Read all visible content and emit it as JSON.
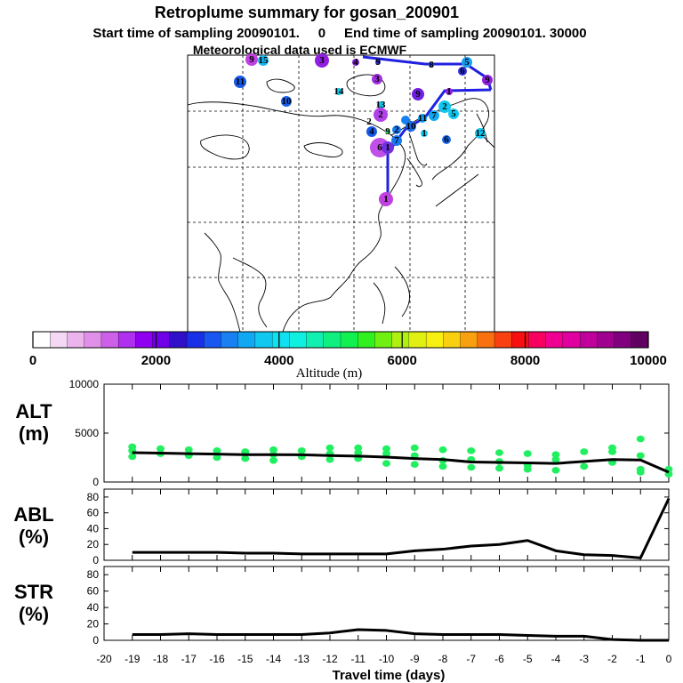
{
  "header": {
    "title": "Retroplume summary for gosan_200901",
    "sampling_line": "Start time of sampling 20090101.     0     End time of sampling 20090101. 30000",
    "met_line": "Meteorological data used is ECMWF"
  },
  "colorbar": {
    "ticks": [
      "0",
      "2000",
      "4000",
      "6000",
      "8000",
      "10000"
    ],
    "label": "Altitude (m)",
    "colors": [
      "#ffffff",
      "#f4d8f4",
      "#ecb4ec",
      "#e090e8",
      "#cc60e8",
      "#b030f0",
      "#9000f0",
      "#7000e8",
      "#3010c8",
      "#1830e8",
      "#1858f0",
      "#1880f0",
      "#10a8f0",
      "#10c8f0",
      "#10e0f0",
      "#10f0e0",
      "#10f0b0",
      "#10f080",
      "#10f050",
      "#30f020",
      "#70f010",
      "#b0f010",
      "#e0f010",
      "#f8f010",
      "#f8d010",
      "#f8a010",
      "#f87010",
      "#f84010",
      "#f81010",
      "#f80060",
      "#f00090",
      "#e000a0",
      "#c0009a",
      "#a00090",
      "#800080",
      "#600060"
    ]
  },
  "map": {
    "annotations": [
      "9",
      "15",
      "3",
      "4",
      "9",
      "8",
      "5",
      "6",
      "9",
      "11",
      "10",
      "14",
      "3",
      "9",
      "1",
      "13",
      "2",
      "2",
      "2",
      "5",
      "7",
      "11",
      "10",
      "2",
      "4",
      "9",
      "1",
      "6",
      "12",
      "7",
      "6",
      "1",
      "1",
      "0"
    ],
    "trajectory_color": "#2020e0"
  },
  "chart_data": [
    {
      "type": "line",
      "panel_label": "ALT\n(m)",
      "label_line1": "ALT",
      "label_line2": "(m)",
      "ylim": [
        0,
        10000
      ],
      "yticks": [
        "0",
        "5000",
        "10000"
      ],
      "x": [
        -19,
        -18,
        -17,
        -16,
        -15,
        -14,
        -13,
        -12,
        -11,
        -10,
        -9,
        -8,
        -7,
        -6,
        -5,
        -4,
        -3,
        -2,
        -1,
        0
      ],
      "series": [
        {
          "name": "mean altitude",
          "values": [
            3000,
            2950,
            2900,
            2850,
            2800,
            2800,
            2780,
            2700,
            2650,
            2550,
            2400,
            2300,
            2050,
            2000,
            1950,
            1900,
            2100,
            2300,
            2250,
            1000
          ]
        }
      ],
      "scatter": [
        {
          "x": -19,
          "y": [
            3600,
            3200,
            2600
          ]
        },
        {
          "x": -18,
          "y": [
            3400,
            2900
          ]
        },
        {
          "x": -17,
          "y": [
            3300,
            2700
          ]
        },
        {
          "x": -16,
          "y": [
            3200,
            2500
          ]
        },
        {
          "x": -15,
          "y": [
            3100,
            2400
          ]
        },
        {
          "x": -14,
          "y": [
            3300,
            2800,
            2200
          ]
        },
        {
          "x": -13,
          "y": [
            3200,
            2600
          ]
        },
        {
          "x": -12,
          "y": [
            3500,
            2900,
            2300
          ]
        },
        {
          "x": -11,
          "y": [
            3500,
            3000,
            2400
          ]
        },
        {
          "x": -10,
          "y": [
            3400,
            2900,
            1900
          ]
        },
        {
          "x": -9,
          "y": [
            3500,
            2700,
            1800
          ]
        },
        {
          "x": -8,
          "y": [
            3300,
            2200,
            1600
          ]
        },
        {
          "x": -7,
          "y": [
            3200,
            2300,
            1500
          ]
        },
        {
          "x": -6,
          "y": [
            3000,
            2100,
            1400
          ]
        },
        {
          "x": -5,
          "y": [
            2900,
            1700,
            1300
          ]
        },
        {
          "x": -4,
          "y": [
            2800,
            2300,
            1200
          ]
        },
        {
          "x": -3,
          "y": [
            3100,
            1600
          ]
        },
        {
          "x": -2,
          "y": [
            3500,
            3100,
            2000
          ]
        },
        {
          "x": -1,
          "y": [
            4400,
            2700,
            1300,
            1000
          ]
        },
        {
          "x": 0,
          "y": [
            1300,
            800
          ]
        }
      ],
      "scatter_color": "#20f060"
    },
    {
      "type": "line",
      "panel_label": "ABL\n(%)",
      "label_line1": "ABL",
      "label_line2": "(%)",
      "ylim": [
        0,
        90
      ],
      "yticks": [
        "0",
        "20",
        "40",
        "60",
        "80"
      ],
      "x": [
        -19,
        -18,
        -17,
        -16,
        -15,
        -14,
        -13,
        -12,
        -11,
        -10,
        -9,
        -8,
        -7,
        -6,
        -5,
        -4,
        -3,
        -2,
        -1,
        0
      ],
      "series": [
        {
          "name": "ABL fraction",
          "values": [
            10,
            10,
            10,
            10,
            9,
            9,
            8,
            8,
            8,
            8,
            12,
            14,
            18,
            20,
            25,
            12,
            7,
            6,
            3,
            78
          ]
        }
      ]
    },
    {
      "type": "line",
      "panel_label": "STR\n(%)",
      "label_line1": "STR",
      "label_line2": "(%)",
      "ylim": [
        0,
        90
      ],
      "yticks": [
        "0",
        "20",
        "40",
        "60",
        "80"
      ],
      "x": [
        -19,
        -18,
        -17,
        -16,
        -15,
        -14,
        -13,
        -12,
        -11,
        -10,
        -9,
        -8,
        -7,
        -6,
        -5,
        -4,
        -3,
        -2,
        -1,
        0
      ],
      "series": [
        {
          "name": "STR fraction",
          "values": [
            7,
            7,
            8,
            7,
            7,
            7,
            7,
            9,
            13,
            12,
            8,
            7,
            7,
            7,
            6,
            5,
            5,
            1,
            0,
            0
          ]
        }
      ]
    }
  ],
  "xaxis": {
    "ticks": [
      "-20",
      "-19",
      "-18",
      "-17",
      "-16",
      "-15",
      "-14",
      "-13",
      "-12",
      "-11",
      "-10",
      "-9",
      "-8",
      "-7",
      "-6",
      "-5",
      "-4",
      "-3",
      "-2",
      "-1",
      "0"
    ],
    "label": "Travel time (days)"
  }
}
